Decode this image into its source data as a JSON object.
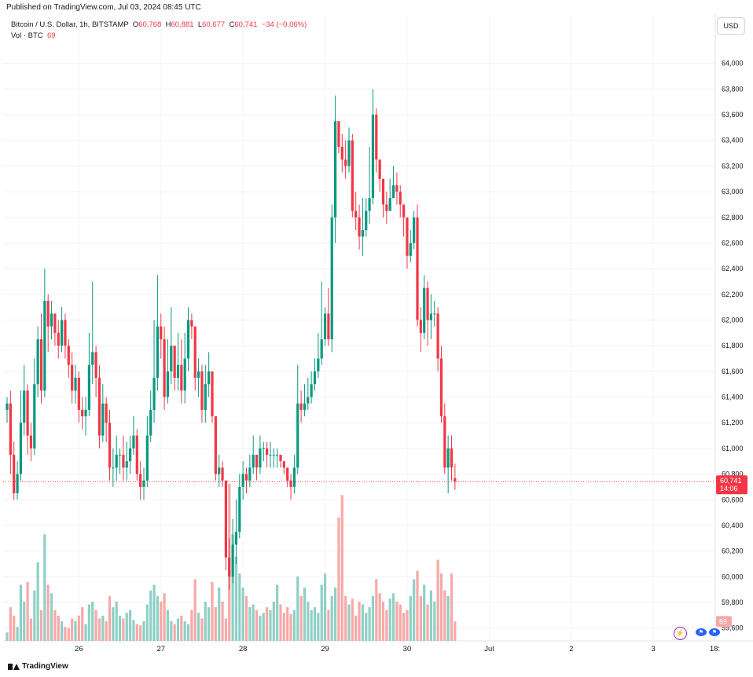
{
  "published": "Published on TradingView.com, Jul 03, 2024 08:45 UTC",
  "legend": {
    "symbol": "Bitcoin / U.S. Dollar, 1h, BITSTAMP",
    "o_label": "O",
    "o": "60,768",
    "h_label": "H",
    "h": "60,881",
    "l_label": "L",
    "l": "60,677",
    "c_label": "C",
    "c": "60,741",
    "change": "−34 (−0.06%)",
    "vol_label": "Vol · BTC",
    "vol": "69"
  },
  "currency_button": "USD",
  "price_badge": {
    "price": "60,741",
    "countdown": "14:06"
  },
  "volume_badge": "69",
  "brand": "TradingView",
  "icons": [
    "lightning-icon",
    "flag-icon",
    "flag-icon"
  ],
  "colors": {
    "up": "#089981",
    "down": "#f23645",
    "vol_up": "#8fd0c6",
    "vol_down": "#f7a9a7",
    "grid": "#f0f3fa",
    "price_line": "#f23645"
  },
  "chart_data": {
    "type": "candlestick",
    "timeframe": "1h",
    "ylim": [
      59500,
      64200
    ],
    "y_ticks": [
      59600,
      59800,
      60000,
      60200,
      60400,
      60600,
      60800,
      61000,
      61200,
      61400,
      61600,
      61800,
      62000,
      62200,
      62400,
      62600,
      62800,
      63000,
      63200,
      63400,
      63600,
      63800,
      64000
    ],
    "y_tick_labels": [
      "59,600",
      "59,800",
      "60,000",
      "60,200",
      "60,400",
      "60,600",
      "60,800",
      "61,000",
      "61,200",
      "61,400",
      "61,600",
      "61,800",
      "62,000",
      "62,200",
      "62,400",
      "62,600",
      "62,800",
      "63,000",
      "63,200",
      "63,400",
      "63,600",
      "63,800",
      "64,000"
    ],
    "x_tick_labels": [
      {
        "label": "26",
        "index": 21
      },
      {
        "label": "27",
        "index": 45
      },
      {
        "label": "28",
        "index": 69
      },
      {
        "label": "29",
        "index": 93
      },
      {
        "label": "30",
        "index": 117
      },
      {
        "label": "Jul",
        "index": 141
      },
      {
        "label": "2",
        "index": 165
      },
      {
        "label": "3",
        "index": 189
      },
      {
        "label": "18:",
        "index": 207
      }
    ],
    "last_price": 60741,
    "closes": [
      61350,
      60950,
      60650,
      60800,
      61200,
      61450,
      61100,
      61000,
      61500,
      61850,
      61450,
      62150,
      61950,
      62050,
      61900,
      61800,
      62000,
      61800,
      61650,
      61450,
      61550,
      61300,
      61250,
      61300,
      61650,
      61750,
      61550,
      61100,
      61350,
      61200,
      60850,
      60850,
      60950,
      60950,
      60850,
      60900,
      61000,
      61100,
      60800,
      60700,
      60750,
      61100,
      61300,
      61550,
      61950,
      61850,
      61400,
      61600,
      61800,
      61550,
      61650,
      61450,
      61700,
      62000,
      61950,
      61550,
      61600,
      61300,
      61500,
      61600,
      61250,
      60800,
      60850,
      60750,
      60150,
      60000,
      60250,
      60350,
      60700,
      60800,
      60750,
      60850,
      60950,
      60850,
      61000,
      61000,
      60950,
      60950,
      60950,
      60950,
      60900,
      60850,
      60750,
      60700,
      60850,
      61350,
      61300,
      61350,
      61400,
      61500,
      61600,
      61700,
      61850,
      62050,
      61850,
      62800,
      63550,
      63350,
      63250,
      63200,
      63400,
      62850,
      62800,
      62650,
      62700,
      62850,
      62950,
      63600,
      63250,
      63100,
      62900,
      62850,
      62950,
      63050,
      63000,
      62900,
      62800,
      62500,
      62600,
      62800,
      62000,
      61900,
      62250,
      62000,
      62050,
      62050,
      61700,
      61250,
      60850,
      61000,
      60850,
      60741
    ],
    "opens": [
      61300,
      61350,
      60950,
      60650,
      60800,
      61200,
      61450,
      61100,
      61000,
      61500,
      61850,
      61450,
      62150,
      61950,
      62050,
      61900,
      61800,
      62000,
      61800,
      61650,
      61450,
      61550,
      61300,
      61250,
      61300,
      61650,
      61750,
      61550,
      61100,
      61350,
      61200,
      60850,
      60850,
      60950,
      60950,
      60850,
      60900,
      61000,
      61100,
      60800,
      60700,
      60750,
      61100,
      61300,
      61550,
      61950,
      61850,
      61400,
      61600,
      61800,
      61550,
      61650,
      61450,
      61700,
      62000,
      61950,
      61550,
      61600,
      61300,
      61500,
      61600,
      61250,
      60800,
      60850,
      60750,
      60150,
      60000,
      60250,
      60350,
      60700,
      60800,
      60750,
      60850,
      60950,
      60850,
      61000,
      61000,
      60950,
      60950,
      60950,
      60950,
      60900,
      60850,
      60750,
      60700,
      60850,
      61350,
      61300,
      61350,
      61400,
      61500,
      61600,
      61700,
      61850,
      62050,
      61850,
      62800,
      63550,
      63350,
      63250,
      63200,
      63400,
      62850,
      62800,
      62650,
      62700,
      62850,
      62950,
      63600,
      63250,
      63100,
      62900,
      62850,
      62950,
      63050,
      63000,
      62900,
      62800,
      62500,
      62600,
      62800,
      62000,
      61900,
      62250,
      62000,
      62050,
      62050,
      61700,
      61250,
      60850,
      61000,
      60768
    ],
    "highs": [
      61400,
      61450,
      61050,
      60900,
      61450,
      61650,
      61500,
      61200,
      61700,
      61950,
      62050,
      62400,
      62200,
      62150,
      62050,
      62000,
      62100,
      62050,
      61850,
      61750,
      61650,
      61600,
      61400,
      61400,
      61900,
      62300,
      61800,
      61650,
      61500,
      61400,
      61300,
      61000,
      61100,
      61000,
      61100,
      61050,
      61100,
      61250,
      61150,
      60900,
      60850,
      61250,
      61450,
      62000,
      62350,
      62050,
      61950,
      61850,
      62100,
      61750,
      61900,
      61850,
      61900,
      62100,
      62050,
      61800,
      61700,
      61650,
      61650,
      61750,
      61300,
      60950,
      60950,
      60900,
      60550,
      60300,
      60450,
      60600,
      60800,
      60900,
      60850,
      60950,
      61100,
      60950,
      61100,
      61050,
      61050,
      61050,
      61000,
      61000,
      60950,
      60900,
      60800,
      60800,
      60950,
      61650,
      61450,
      61500,
      61550,
      61600,
      61700,
      61900,
      62300,
      62100,
      62250,
      62900,
      63750,
      63550,
      63450,
      63400,
      63500,
      63450,
      63000,
      62900,
      62950,
      62950,
      63350,
      63800,
      63650,
      63250,
      63100,
      63000,
      63100,
      63200,
      63150,
      63050,
      62900,
      62700,
      62700,
      62850,
      62900,
      62100,
      62350,
      62300,
      62200,
      62150,
      62100,
      61800,
      61350,
      61100,
      61100,
      60881
    ],
    "lows": [
      61200,
      60800,
      60600,
      60600,
      60750,
      61100,
      60950,
      60900,
      60950,
      61400,
      61350,
      61400,
      61750,
      61850,
      61800,
      61700,
      61750,
      61700,
      61550,
      61350,
      61350,
      61200,
      61150,
      61100,
      61250,
      61500,
      61400,
      61000,
      61050,
      61050,
      60750,
      60700,
      60750,
      60800,
      60750,
      60750,
      60800,
      60950,
      60750,
      60600,
      60600,
      60700,
      61050,
      61200,
      61450,
      61700,
      61300,
      61350,
      61500,
      61450,
      61450,
      61350,
      61350,
      61600,
      61850,
      61450,
      61400,
      61200,
      61200,
      61400,
      61200,
      60750,
      60700,
      60700,
      60050,
      59900,
      59950,
      60100,
      60300,
      60600,
      60650,
      60700,
      60800,
      60750,
      60800,
      60900,
      60850,
      60850,
      60850,
      60850,
      60850,
      60800,
      60700,
      60600,
      60650,
      60800,
      61200,
      61250,
      61300,
      61350,
      61450,
      61550,
      61650,
      61800,
      61800,
      61750,
      62600,
      63300,
      63150,
      63100,
      63150,
      62800,
      62700,
      62550,
      62500,
      62650,
      62750,
      62900,
      63150,
      63000,
      62800,
      62750,
      62850,
      62950,
      62900,
      62800,
      62650,
      62400,
      62450,
      62550,
      61950,
      61750,
      61850,
      61800,
      61850,
      61950,
      61600,
      61200,
      60800,
      60650,
      60750,
      60677
    ],
    "volumes": [
      30,
      120,
      90,
      50,
      200,
      140,
      210,
      80,
      180,
      280,
      110,
      380,
      200,
      170,
      110,
      90,
      70,
      50,
      45,
      80,
      70,
      90,
      120,
      60,
      130,
      140,
      110,
      80,
      90,
      70,
      160,
      120,
      140,
      90,
      80,
      100,
      110,
      75,
      60,
      55,
      70,
      130,
      180,
      200,
      160,
      140,
      170,
      110,
      70,
      60,
      80,
      90,
      70,
      60,
      110,
      220,
      100,
      80,
      140,
      120,
      210,
      120,
      190,
      140,
      80,
      560,
      380,
      300,
      240,
      190,
      160,
      120,
      130,
      110,
      90,
      100,
      120,
      110,
      140,
      200,
      130,
      100,
      120,
      95,
      110,
      230,
      160,
      190,
      140,
      110,
      120,
      100,
      200,
      240,
      110,
      160,
      190,
      440,
      520,
      160,
      130,
      150,
      90,
      140,
      130,
      100,
      120,
      160,
      220,
      170,
      140,
      110,
      150,
      170,
      140,
      130,
      100,
      110,
      160,
      220,
      250,
      160,
      200,
      130,
      180,
      140,
      290,
      240,
      180,
      160,
      240,
      69
    ]
  }
}
